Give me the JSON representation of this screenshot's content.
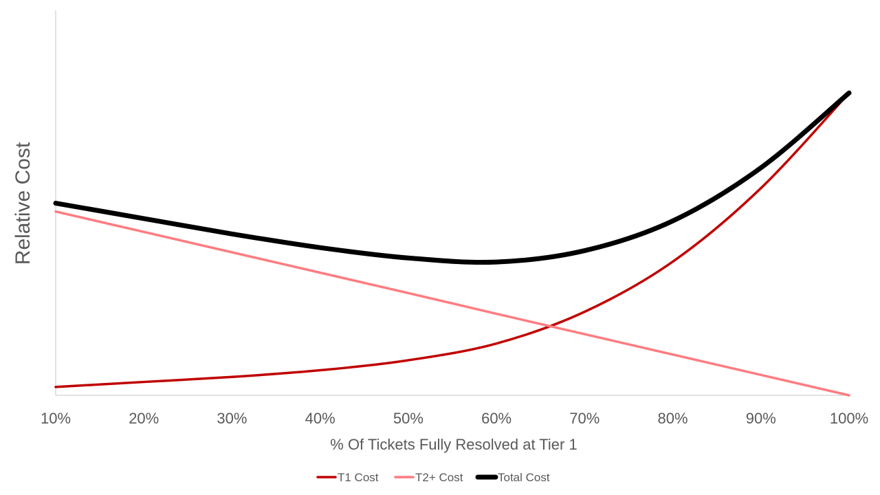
{
  "chart_data": {
    "type": "line",
    "xlabel": "% Of Tickets Fully Resolved at Tier 1",
    "ylabel": "Relative Cost",
    "x": [
      0.1,
      0.2,
      0.3,
      0.4,
      0.5,
      0.6,
      0.7,
      0.8,
      0.9,
      1.0
    ],
    "x_tick_labels": [
      "10%",
      "20%",
      "30%",
      "40%",
      "50%",
      "60%",
      "70%",
      "80%",
      "90%",
      "100%"
    ],
    "ylim": [
      0,
      100
    ],
    "y_ticks_shown": false,
    "grid": false,
    "legend": "bottom-center",
    "series": [
      {
        "name": "T1 Cost",
        "color": "#c00000",
        "line_width": "normal",
        "values": [
          2.5,
          4.0,
          5.5,
          7.5,
          10.5,
          15.5,
          25.0,
          40.0,
          62.0,
          90.5
        ]
      },
      {
        "name": "T2+ Cost",
        "color": "#ff7c80",
        "line_width": "normal",
        "values": [
          55.0,
          48.9,
          42.8,
          36.7,
          30.6,
          24.4,
          18.3,
          12.2,
          6.1,
          0.0
        ]
      },
      {
        "name": "Total Cost",
        "color": "#000000",
        "line_width": "thick",
        "values": [
          57.5,
          52.9,
          48.3,
          44.2,
          41.1,
          39.9,
          43.3,
          52.2,
          68.1,
          90.5
        ]
      }
    ]
  }
}
